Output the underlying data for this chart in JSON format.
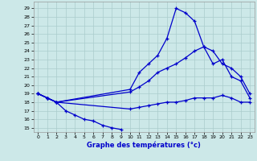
{
  "xlabel": "Graphe des températures (°c)",
  "background_color": "#cce8e8",
  "grid_color": "#aacccc",
  "line_color": "#0000cc",
  "xlim": [
    -0.5,
    23.5
  ],
  "ylim": [
    14.5,
    29.8
  ],
  "yticks": [
    15,
    16,
    17,
    18,
    19,
    20,
    21,
    22,
    23,
    24,
    25,
    26,
    27,
    28,
    29
  ],
  "xticks": [
    0,
    1,
    2,
    3,
    4,
    5,
    6,
    7,
    8,
    9,
    10,
    11,
    12,
    13,
    14,
    15,
    16,
    17,
    18,
    19,
    20,
    21,
    22,
    23
  ],
  "line1_x": [
    0,
    1,
    2,
    3,
    4,
    5,
    6,
    7,
    8,
    9
  ],
  "line1_y": [
    19.0,
    18.5,
    18.0,
    17.0,
    16.5,
    16.0,
    15.8,
    15.3,
    15.0,
    14.8
  ],
  "line2_x": [
    0,
    1,
    2,
    10,
    11,
    12,
    13,
    14,
    15,
    16,
    17,
    18,
    19,
    20,
    21,
    22,
    23
  ],
  "line2_y": [
    19.0,
    18.5,
    18.0,
    19.5,
    21.5,
    22.5,
    23.5,
    25.5,
    29.0,
    28.5,
    27.5,
    24.5,
    24.0,
    22.5,
    22.0,
    21.0,
    19.0
  ],
  "line3_x": [
    0,
    1,
    2,
    10,
    11,
    12,
    13,
    14,
    15,
    16,
    17,
    18,
    19,
    20,
    21,
    22,
    23
  ],
  "line3_y": [
    19.0,
    18.5,
    18.0,
    19.2,
    19.8,
    20.5,
    21.5,
    22.0,
    22.5,
    23.2,
    24.0,
    24.5,
    22.5,
    23.0,
    21.0,
    20.5,
    18.5
  ],
  "line4_x": [
    0,
    1,
    2,
    10,
    11,
    12,
    13,
    14,
    15,
    16,
    17,
    18,
    19,
    20,
    21,
    22,
    23
  ],
  "line4_y": [
    19.0,
    18.5,
    18.0,
    17.2,
    17.4,
    17.6,
    17.8,
    18.0,
    18.0,
    18.2,
    18.5,
    18.5,
    18.5,
    18.8,
    18.5,
    18.0,
    18.0
  ]
}
